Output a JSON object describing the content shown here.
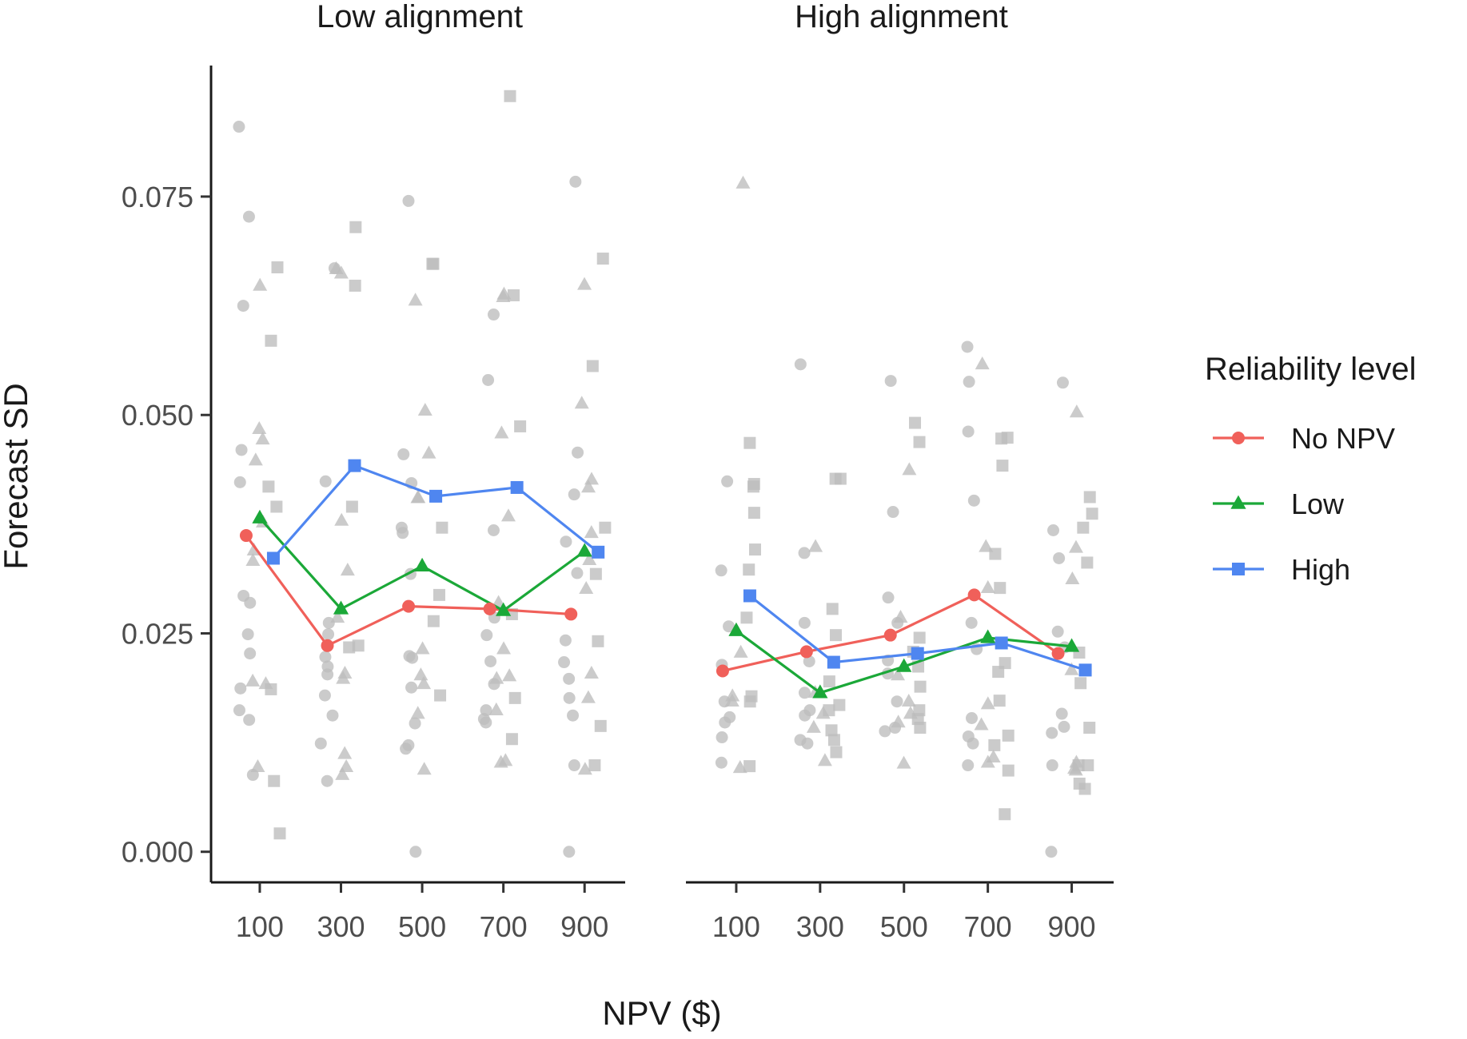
{
  "chart_data": {
    "type": "line",
    "xlabel": "NPV ($)",
    "ylabel": "Forecast SD",
    "ylim": [
      -0.0035,
      0.09
    ],
    "y_ticks": [
      "0.000",
      "0.025",
      "0.050",
      "0.075"
    ],
    "y_tick_values": [
      0,
      0.025,
      0.05,
      0.075
    ],
    "x_categories": [
      "100",
      "300",
      "500",
      "700",
      "900"
    ],
    "grid": false,
    "legend": {
      "title": "Reliability level",
      "placement": "right",
      "entries": [
        {
          "label": "No NPV",
          "color": "#F0605A",
          "shape": "circle"
        },
        {
          "label": "Low",
          "color": "#1BA838",
          "shape": "triangle"
        },
        {
          "label": "High",
          "color": "#4F86F0",
          "shape": "square"
        }
      ]
    },
    "raw_points_color": "#BDBDBD",
    "panels": [
      {
        "title": "Low alignment",
        "series": [
          {
            "name": "No NPV",
            "values": [
              0.0362,
              0.0236,
              0.0281,
              0.0278,
              0.0272
            ]
          },
          {
            "name": "Low",
            "values": [
              0.0382,
              0.0278,
              0.0327,
              0.0276,
              0.0344
            ]
          },
          {
            "name": "High",
            "values": [
              0.0336,
              0.0442,
              0.0407,
              0.0417,
              0.0343
            ]
          }
        ],
        "raw": {
          "No NPV": [
            [
              0.083,
              0.0727,
              0.0625,
              0.046,
              0.0423,
              0.0293,
              0.0285,
              0.0249,
              0.0227,
              0.0187,
              0.0162,
              0.0151,
              0.0088
            ],
            [
              0.0668,
              0.0424,
              0.0262,
              0.0249,
              0.0223,
              0.0212,
              0.0203,
              0.0179,
              0.0156,
              0.0124,
              0.0081
            ],
            [
              0.0745,
              0.0455,
              0.0422,
              0.0371,
              0.0365,
              0.0318,
              0.0224,
              0.0222,
              0.0188,
              0.0147,
              0.0122,
              0.0118,
              0.0
            ],
            [
              0.0615,
              0.054,
              0.0368,
              0.0268,
              0.0248,
              0.0218,
              0.0192,
              0.0162,
              0.0152,
              0.0148
            ],
            [
              0.0767,
              0.0457,
              0.0409,
              0.0355,
              0.0319,
              0.0242,
              0.0217,
              0.0198,
              0.0176,
              0.0156,
              0.0099,
              0.0
            ]
          ],
          "Low": [
            [
              0.0648,
              0.0484,
              0.0472,
              0.0448,
              0.0377,
              0.0345,
              0.0333,
              0.0195,
              0.0192,
              0.0097
            ],
            [
              0.0667,
              0.0662,
              0.0379,
              0.0322,
              0.0268,
              0.0204,
              0.0198,
              0.0112,
              0.0097,
              0.0088
            ],
            [
              0.0631,
              0.0505,
              0.0456,
              0.0405,
              0.0405,
              0.0232,
              0.0202,
              0.0192,
              0.0158,
              0.0094
            ],
            [
              0.0635,
              0.0638,
              0.0479,
              0.0384,
              0.0285,
              0.0232,
              0.0201,
              0.0198,
              0.0162,
              0.0104,
              0.0102
            ],
            [
              0.0649,
              0.0513,
              0.0426,
              0.0417,
              0.0365,
              0.0334,
              0.0301,
              0.0204,
              0.0176,
              0.0094
            ]
          ],
          "High": [
            [
              0.0669,
              0.0585,
              0.0418,
              0.0395,
              0.0186,
              0.0081,
              0.0021
            ],
            [
              0.0715,
              0.0648,
              0.0395,
              0.0236,
              0.0234
            ],
            [
              0.0673,
              0.0673,
              0.0371,
              0.0294,
              0.0264,
              0.0179
            ],
            [
              0.0865,
              0.0637,
              0.0487,
              0.0272,
              0.0176,
              0.0129
            ],
            [
              0.0679,
              0.0556,
              0.0371,
              0.0318,
              0.0241,
              0.0144,
              0.0099
            ]
          ]
        }
      },
      {
        "title": "High alignment",
        "series": [
          {
            "name": "No NPV",
            "values": [
              0.0207,
              0.0229,
              0.0248,
              0.0294,
              0.0227
            ]
          },
          {
            "name": "Low",
            "values": [
              0.0253,
              0.0182,
              0.0212,
              0.0245,
              0.0235
            ]
          },
          {
            "name": "High",
            "values": [
              0.0293,
              0.0217,
              0.0227,
              0.0239,
              0.0208
            ]
          }
        ],
        "raw": {
          "No NPV": [
            [
              0.0424,
              0.0322,
              0.0258,
              0.0214,
              0.0172,
              0.0154,
              0.0148,
              0.0131,
              0.0102
            ],
            [
              0.0558,
              0.0342,
              0.0262,
              0.0218,
              0.0182,
              0.0162,
              0.0156,
              0.0128,
              0.0124
            ],
            [
              0.0539,
              0.0389,
              0.0291,
              0.0262,
              0.0219,
              0.0204,
              0.0172,
              0.0142,
              0.0138
            ],
            [
              0.0578,
              0.0538,
              0.0481,
              0.0402,
              0.0262,
              0.0232,
              0.0153,
              0.0132,
              0.0124,
              0.0099
            ],
            [
              0.0537,
              0.0368,
              0.0336,
              0.0252,
              0.0234,
              0.0158,
              0.0143,
              0.0136,
              0.0099,
              0.0
            ]
          ],
          "Low": [
            [
              0.0765,
              0.0228,
              0.0178,
              0.0172,
              0.0096
            ],
            [
              0.0349,
              0.0182,
              0.0158,
              0.0142,
              0.0104
            ],
            [
              0.0437,
              0.0268,
              0.0202,
              0.0172,
              0.0158,
              0.0148,
              0.0101
            ],
            [
              0.0558,
              0.0349,
              0.0302,
              0.0169,
              0.0145,
              0.0108,
              0.0102
            ],
            [
              0.0503,
              0.0348,
              0.0312,
              0.0208,
              0.0102,
              0.0095,
              0.0093
            ]
          ],
          "High": [
            [
              0.0468,
              0.0421,
              0.0418,
              0.0388,
              0.0346,
              0.0323,
              0.0268,
              0.0178,
              0.0172,
              0.0098
            ],
            [
              0.0427,
              0.0427,
              0.0278,
              0.0248,
              0.0195,
              0.0168,
              0.0162,
              0.0139,
              0.0128,
              0.0114
            ],
            [
              0.0491,
              0.0469,
              0.0245,
              0.0229,
              0.0212,
              0.0189,
              0.0162,
              0.0152,
              0.0142
            ],
            [
              0.0474,
              0.0473,
              0.0442,
              0.0341,
              0.0302,
              0.0216,
              0.0206,
              0.0173,
              0.0133,
              0.0122,
              0.0093,
              0.0043
            ],
            [
              0.0406,
              0.0387,
              0.0371,
              0.0331,
              0.0228,
              0.0193,
              0.0142,
              0.0099,
              0.0078,
              0.0072,
              0.0099
            ]
          ]
        }
      }
    ]
  }
}
